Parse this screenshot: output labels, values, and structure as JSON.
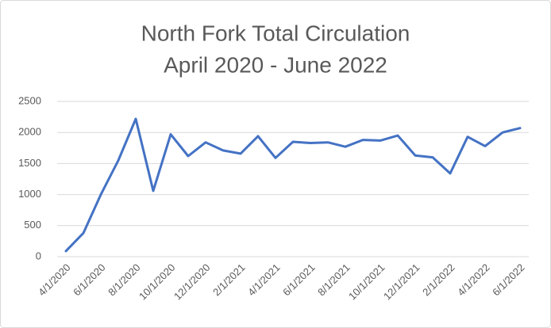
{
  "chart_data": {
    "type": "line",
    "title": "North Fork Total Circulation",
    "subtitle": "April 2020 - June 2022",
    "categories": [
      "4/1/2020",
      null,
      "6/1/2020",
      null,
      "8/1/2020",
      null,
      "10/1/2020",
      null,
      "12/1/2020",
      null,
      "2/1/2021",
      null,
      "4/1/2021",
      null,
      "6/1/2021",
      null,
      "8/1/2021",
      null,
      "10/1/2021",
      null,
      "12/1/2021",
      null,
      "2/1/2022",
      null,
      "4/1/2022",
      null,
      "6/1/2022"
    ],
    "series": [
      {
        "name": "Total Circulation",
        "color": "#4472c4",
        "values": [
          90,
          380,
          1000,
          1550,
          2220,
          1060,
          1970,
          1620,
          1840,
          1710,
          1660,
          1940,
          1590,
          1850,
          1830,
          1840,
          1770,
          1880,
          1870,
          1950,
          1630,
          1600,
          1340,
          1930,
          1780,
          2000,
          2070
        ]
      }
    ],
    "ylim": [
      0,
      2500
    ],
    "yticks": [
      0,
      500,
      1000,
      1500,
      2000,
      2500
    ],
    "grid": true
  }
}
